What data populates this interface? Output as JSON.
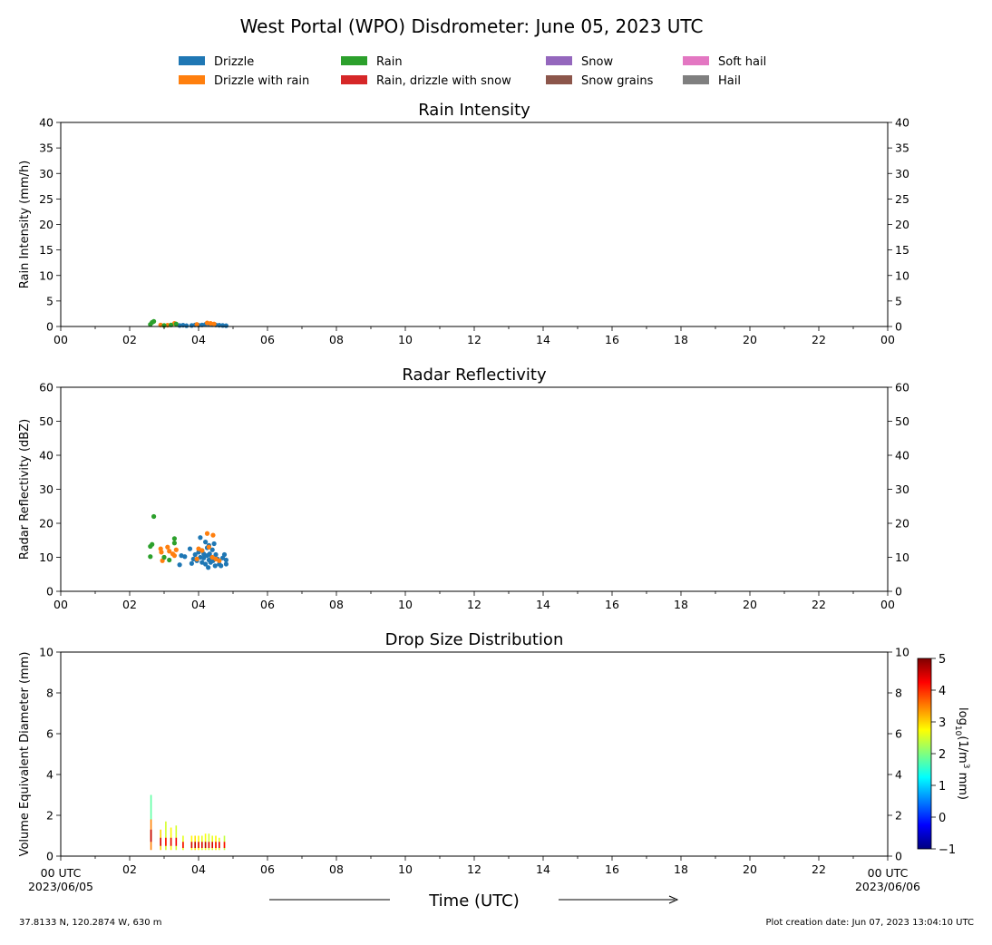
{
  "figure": {
    "title": "West Portal (WPO) Disdrometer: June 05, 2023 UTC",
    "x_axis_title": "Time (UTC)",
    "location": "37.8133 N, 120.2874 W, 630 m",
    "creation": "Plot creation date: Jun 07, 2023 13:04:10 UTC",
    "start_label": "00 UTC",
    "start_date": "2023/06/05",
    "end_label": "00 UTC",
    "end_date": "2023/06/06"
  },
  "legend": [
    {
      "label": "Drizzle",
      "color": "#1f77b4"
    },
    {
      "label": "Drizzle with rain",
      "color": "#ff7f0e"
    },
    {
      "label": "Rain",
      "color": "#2ca02c"
    },
    {
      "label": "Rain, drizzle with snow",
      "color": "#d62728"
    },
    {
      "label": "Snow",
      "color": "#9467bd"
    },
    {
      "label": "Snow grains",
      "color": "#8c564b"
    },
    {
      "label": "Soft hail",
      "color": "#e377c2"
    },
    {
      "label": "Hail",
      "color": "#7f7f7f"
    }
  ],
  "colorbar": {
    "label": "log10(1/m3 mm)",
    "ticks": [
      5,
      4,
      3,
      2,
      1,
      0,
      -1
    ],
    "range": [
      -1,
      5
    ]
  },
  "chart_data": [
    {
      "type": "scatter",
      "title": "Rain Intensity",
      "ylabel": "Rain Intensity (mm/h)",
      "xlim": [
        0,
        24
      ],
      "ylim": [
        0,
        40
      ],
      "x_ticks": [
        "00",
        "02",
        "04",
        "06",
        "08",
        "10",
        "12",
        "14",
        "16",
        "18",
        "20",
        "22",
        "00"
      ],
      "y_ticks": [
        0,
        5,
        10,
        15,
        20,
        25,
        30,
        35,
        40
      ],
      "series": [
        {
          "name": "Drizzle",
          "color": "#1f77b4",
          "points": [
            [
              3.45,
              0.2
            ],
            [
              3.55,
              0.25
            ],
            [
              3.65,
              0.15
            ],
            [
              3.8,
              0.2
            ],
            [
              3.9,
              0.3
            ],
            [
              4.0,
              0.25
            ],
            [
              4.1,
              0.3
            ],
            [
              4.2,
              0.4
            ],
            [
              4.3,
              0.5
            ],
            [
              4.4,
              0.35
            ],
            [
              4.5,
              0.3
            ],
            [
              4.6,
              0.25
            ],
            [
              4.7,
              0.2
            ],
            [
              4.8,
              0.15
            ]
          ]
        },
        {
          "name": "Drizzle with rain",
          "color": "#ff7f0e",
          "points": [
            [
              2.9,
              0.3
            ],
            [
              3.1,
              0.25
            ],
            [
              3.3,
              0.6
            ],
            [
              3.95,
              0.4
            ],
            [
              4.25,
              0.7
            ],
            [
              4.35,
              0.6
            ],
            [
              4.45,
              0.5
            ]
          ]
        },
        {
          "name": "Rain",
          "color": "#2ca02c",
          "points": [
            [
              2.6,
              0.4
            ],
            [
              2.65,
              0.8
            ],
            [
              2.7,
              1.0
            ],
            [
              3.0,
              0.2
            ],
            [
              3.2,
              0.3
            ],
            [
              3.35,
              0.5
            ]
          ]
        }
      ]
    },
    {
      "type": "scatter",
      "title": "Radar Reflectivity",
      "ylabel": "Radar Reflectivity (dBZ)",
      "xlim": [
        0,
        24
      ],
      "ylim": [
        0,
        60
      ],
      "x_ticks": [
        "00",
        "02",
        "04",
        "06",
        "08",
        "10",
        "12",
        "14",
        "16",
        "18",
        "20",
        "22",
        "00"
      ],
      "y_ticks": [
        0,
        10,
        20,
        30,
        40,
        50,
        60
      ],
      "series": [
        {
          "name": "Drizzle",
          "color": "#1f77b4",
          "points": [
            [
              3.45,
              7.8
            ],
            [
              3.5,
              10.5
            ],
            [
              3.6,
              10.2
            ],
            [
              3.75,
              12.5
            ],
            [
              3.8,
              8.2
            ],
            [
              3.85,
              9.5
            ],
            [
              3.9,
              10.8
            ],
            [
              3.95,
              9.0
            ],
            [
              4.0,
              11.5
            ],
            [
              4.05,
              10.0
            ],
            [
              4.05,
              15.8
            ],
            [
              4.1,
              8.5
            ],
            [
              4.1,
              12.0
            ],
            [
              4.15,
              9.8
            ],
            [
              4.15,
              11.0
            ],
            [
              4.2,
              14.5
            ],
            [
              4.2,
              8.0
            ],
            [
              4.25,
              10.5
            ],
            [
              4.25,
              12.8
            ],
            [
              4.28,
              7.0
            ],
            [
              4.3,
              9.2
            ],
            [
              4.3,
              13.5
            ],
            [
              4.32,
              11.0
            ],
            [
              4.35,
              8.5
            ],
            [
              4.38,
              10.0
            ],
            [
              4.4,
              12.2
            ],
            [
              4.42,
              9.0
            ],
            [
              4.45,
              14.0
            ],
            [
              4.48,
              7.5
            ],
            [
              4.5,
              10.8
            ],
            [
              4.55,
              9.5
            ],
            [
              4.6,
              8.0
            ],
            [
              4.65,
              7.5
            ],
            [
              4.7,
              9.8
            ],
            [
              4.75,
              10.8
            ],
            [
              4.8,
              8.0
            ],
            [
              4.8,
              9.2
            ]
          ]
        },
        {
          "name": "Drizzle with rain",
          "color": "#ff7f0e",
          "points": [
            [
              2.9,
              12.5
            ],
            [
              2.92,
              11.5
            ],
            [
              2.95,
              9.0
            ],
            [
              3.0,
              10.0
            ],
            [
              3.1,
              13.0
            ],
            [
              3.15,
              11.8
            ],
            [
              3.25,
              11.0
            ],
            [
              3.3,
              10.5
            ],
            [
              3.35,
              12.2
            ],
            [
              3.95,
              9.5
            ],
            [
              4.0,
              12.5
            ],
            [
              4.1,
              12.0
            ],
            [
              4.25,
              17.0
            ],
            [
              4.3,
              13.0
            ],
            [
              4.4,
              10.0
            ],
            [
              4.42,
              16.5
            ],
            [
              4.5,
              9.5
            ],
            [
              4.6,
              9.0
            ]
          ]
        },
        {
          "name": "Rain",
          "color": "#2ca02c",
          "points": [
            [
              2.6,
              10.2
            ],
            [
              2.6,
              13.2
            ],
            [
              2.65,
              13.8
            ],
            [
              2.7,
              22.0
            ],
            [
              3.0,
              10.0
            ],
            [
              3.15,
              9.2
            ],
            [
              3.3,
              15.5
            ],
            [
              3.3,
              14.2
            ]
          ]
        }
      ]
    },
    {
      "type": "heatmap",
      "title": "Drop Size Distribution",
      "ylabel": "Volume Equivalent Diameter (mm)",
      "xlim": [
        0,
        24
      ],
      "ylim": [
        0,
        10
      ],
      "x_ticks": [
        "00 UTC",
        "02",
        "04",
        "06",
        "08",
        "10",
        "12",
        "14",
        "16",
        "18",
        "20",
        "22",
        "00 UTC"
      ],
      "y_ticks": [
        0,
        2,
        4,
        6,
        8,
        10
      ],
      "colorscale": "jet",
      "zlim": [
        -1,
        5
      ],
      "cells": [
        {
          "t": 2.62,
          "d0": 0.3,
          "d1": 1.8,
          "z": 3.5
        },
        {
          "t": 2.62,
          "d0": 1.8,
          "d1": 3.0,
          "z": 1.8
        },
        {
          "t": 2.62,
          "d0": 0.7,
          "d1": 1.3,
          "z": 4.6
        },
        {
          "t": 2.9,
          "d0": 0.3,
          "d1": 1.3,
          "z": 3.0
        },
        {
          "t": 2.9,
          "d0": 0.5,
          "d1": 0.9,
          "z": 4.5
        },
        {
          "t": 3.05,
          "d0": 0.3,
          "d1": 1.7,
          "z": 2.5
        },
        {
          "t": 3.05,
          "d0": 0.5,
          "d1": 0.9,
          "z": 4.2
        },
        {
          "t": 3.2,
          "d0": 0.3,
          "d1": 1.4,
          "z": 2.8
        },
        {
          "t": 3.2,
          "d0": 0.5,
          "d1": 0.9,
          "z": 4.4
        },
        {
          "t": 3.35,
          "d0": 0.3,
          "d1": 1.5,
          "z": 2.5
        },
        {
          "t": 3.35,
          "d0": 0.5,
          "d1": 0.9,
          "z": 4.3
        },
        {
          "t": 3.55,
          "d0": 0.3,
          "d1": 1.0,
          "z": 2.6
        },
        {
          "t": 3.55,
          "d0": 0.4,
          "d1": 0.7,
          "z": 4.3
        },
        {
          "t": 3.8,
          "d0": 0.3,
          "d1": 1.0,
          "z": 2.8
        },
        {
          "t": 3.9,
          "d0": 0.3,
          "d1": 1.0,
          "z": 2.9
        },
        {
          "t": 4.0,
          "d0": 0.3,
          "d1": 1.0,
          "z": 2.8
        },
        {
          "t": 4.1,
          "d0": 0.3,
          "d1": 1.0,
          "z": 2.6
        },
        {
          "t": 4.2,
          "d0": 0.3,
          "d1": 1.1,
          "z": 2.7
        },
        {
          "t": 4.3,
          "d0": 0.3,
          "d1": 1.1,
          "z": 2.5
        },
        {
          "t": 4.4,
          "d0": 0.3,
          "d1": 1.0,
          "z": 2.6
        },
        {
          "t": 4.5,
          "d0": 0.3,
          "d1": 1.0,
          "z": 2.8
        },
        {
          "t": 4.6,
          "d0": 0.3,
          "d1": 0.9,
          "z": 2.6
        },
        {
          "t": 4.75,
          "d0": 0.3,
          "d1": 1.0,
          "z": 2.4
        },
        {
          "t": 3.8,
          "d0": 0.4,
          "d1": 0.7,
          "z": 4.5
        },
        {
          "t": 3.9,
          "d0": 0.4,
          "d1": 0.7,
          "z": 4.6
        },
        {
          "t": 4.0,
          "d0": 0.4,
          "d1": 0.7,
          "z": 4.4
        },
        {
          "t": 4.1,
          "d0": 0.4,
          "d1": 0.7,
          "z": 4.5
        },
        {
          "t": 4.2,
          "d0": 0.4,
          "d1": 0.7,
          "z": 4.6
        },
        {
          "t": 4.3,
          "d0": 0.4,
          "d1": 0.7,
          "z": 4.4
        },
        {
          "t": 4.4,
          "d0": 0.4,
          "d1": 0.7,
          "z": 4.5
        },
        {
          "t": 4.5,
          "d0": 0.4,
          "d1": 0.7,
          "z": 4.3
        },
        {
          "t": 4.6,
          "d0": 0.4,
          "d1": 0.7,
          "z": 4.4
        },
        {
          "t": 4.75,
          "d0": 0.4,
          "d1": 0.7,
          "z": 4.2
        }
      ]
    }
  ]
}
